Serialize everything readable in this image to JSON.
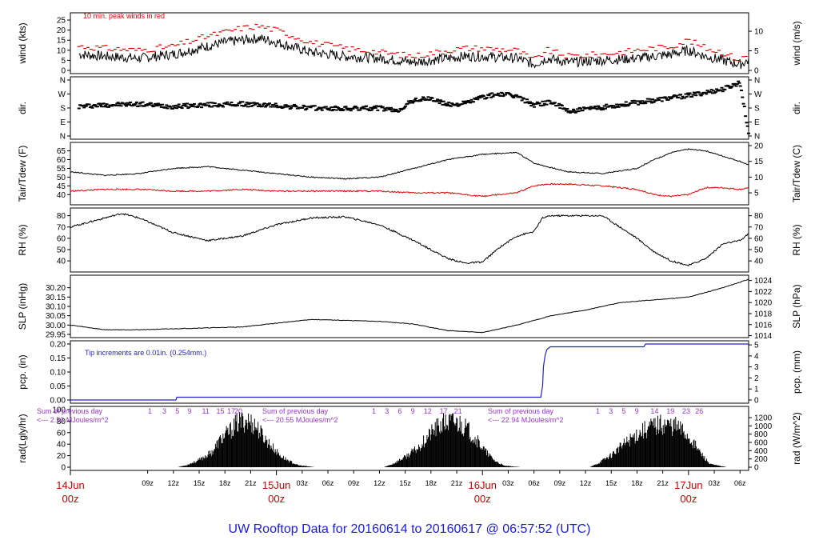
{
  "title": "UW Rooftop Data for 20160614  to  20160617 @ 06:57:52  (UTC)",
  "colors": {
    "black": "#000000",
    "red": "#dd0000",
    "blue": "#2222cc",
    "purple": "#9933cc",
    "title": "#1a1aee",
    "day": "#cc0000"
  },
  "time_axis": {
    "start_hour": 0,
    "end_hour": 79,
    "labels": [
      {
        "h": 9,
        "t": "09z"
      },
      {
        "h": 12,
        "t": "12z"
      },
      {
        "h": 15,
        "t": "15z"
      },
      {
        "h": 18,
        "t": "18z"
      },
      {
        "h": 21,
        "t": "21z"
      },
      {
        "h": 27,
        "t": "03z"
      },
      {
        "h": 30,
        "t": "06z"
      },
      {
        "h": 33,
        "t": "09z"
      },
      {
        "h": 36,
        "t": "12z"
      },
      {
        "h": 39,
        "t": "15z"
      },
      {
        "h": 42,
        "t": "18z"
      },
      {
        "h": 45,
        "t": "21z"
      },
      {
        "h": 51,
        "t": "03z"
      },
      {
        "h": 54,
        "t": "06z"
      },
      {
        "h": 57,
        "t": "09z"
      },
      {
        "h": 60,
        "t": "12z"
      },
      {
        "h": 63,
        "t": "15z"
      },
      {
        "h": 66,
        "t": "18z"
      },
      {
        "h": 69,
        "t": "21z"
      },
      {
        "h": 75,
        "t": "03z"
      },
      {
        "h": 78,
        "t": "06z"
      }
    ],
    "days": [
      {
        "h": 0,
        "date": "14Jun",
        "z": "00z"
      },
      {
        "h": 24,
        "date": "15Jun",
        "z": "00z"
      },
      {
        "h": 48,
        "date": "16Jun",
        "z": "00z"
      },
      {
        "h": 72,
        "date": "17Jun",
        "z": "00z"
      }
    ]
  },
  "chart_data": [
    {
      "type": "line",
      "panel": "wind",
      "ylabel": "wind (kts)",
      "ylabel_right": "wind (m/s)",
      "ylim": [
        0,
        27
      ],
      "yticks": [
        "0",
        "5",
        "10",
        "15",
        "20",
        "25"
      ],
      "yticks_right": [
        "0",
        "5",
        "10"
      ],
      "annotation": "10 min. peak winds in red",
      "x": [
        1,
        4,
        8,
        12,
        16,
        18,
        20,
        22,
        24,
        28,
        32,
        36,
        40,
        44,
        46,
        48,
        52,
        54,
        55.5,
        58,
        62,
        66,
        70,
        72,
        74,
        76,
        78,
        79
      ],
      "series": [
        {
          "values": [
            8,
            7,
            6,
            8,
            12,
            14,
            15,
            16,
            14,
            9,
            7,
            6,
            4,
            6,
            7,
            7,
            6,
            3,
            6,
            4,
            5,
            6,
            8,
            10,
            7,
            5,
            3,
            5
          ]
        },
        {
          "values": [
            12,
            11,
            10,
            12,
            17,
            19,
            21,
            22,
            20,
            14,
            11,
            9,
            7,
            10,
            11,
            11,
            10,
            5,
            10,
            7,
            8,
            10,
            12,
            15,
            11,
            9,
            5,
            8
          ]
        }
      ]
    },
    {
      "type": "scatter",
      "panel": "dir",
      "ylabel": "dir.",
      "ylabel_right": "dir.",
      "yticks": [
        "N",
        "E",
        "S",
        "W",
        "N"
      ],
      "x": [
        1,
        4,
        8,
        12,
        16,
        20,
        24,
        28,
        32,
        36,
        38,
        40,
        42,
        44,
        46,
        48,
        50,
        52,
        54,
        56,
        58,
        60,
        64,
        68,
        72,
        76,
        78,
        79
      ],
      "values": [
        190,
        200,
        205,
        190,
        200,
        205,
        195,
        180,
        175,
        180,
        160,
        230,
        240,
        200,
        210,
        250,
        270,
        255,
        200,
        220,
        160,
        170,
        200,
        230,
        260,
        300,
        345,
        20
      ]
    },
    {
      "type": "line",
      "panel": "temperature",
      "ylabel": "Tair/Tdew (F)",
      "ylabel_right": "Tair/Tdew (C)",
      "ylim": [
        36,
        68
      ],
      "yticks": [
        "40",
        "45",
        "50",
        "55",
        "60",
        "65"
      ],
      "yticks_right": [
        "5",
        "10",
        "15",
        "20"
      ],
      "x": [
        0,
        4,
        8,
        12,
        16,
        20,
        24,
        28,
        32,
        36,
        40,
        44,
        48,
        52,
        54,
        55.5,
        58,
        62,
        66,
        68,
        70,
        72,
        74,
        76,
        78,
        79
      ],
      "series": [
        {
          "values": [
            53,
            51,
            52,
            55,
            56,
            54,
            52,
            50,
            49,
            50,
            55,
            60,
            63,
            64,
            58,
            56,
            53,
            52,
            55,
            60,
            64,
            66,
            65,
            62,
            59,
            57
          ]
        },
        {
          "values": [
            42,
            43,
            43,
            42,
            42,
            43,
            42,
            42,
            42,
            42,
            41,
            41,
            39,
            41,
            45,
            46,
            46,
            45,
            43,
            40,
            39,
            40,
            44,
            44,
            43,
            44
          ]
        }
      ]
    },
    {
      "type": "line",
      "panel": "rh",
      "ylabel": "RH (%)",
      "ylabel_right": "RH (%)",
      "ylim": [
        33,
        84
      ],
      "yticks": [
        "40",
        "50",
        "60",
        "70",
        "80"
      ],
      "yticks_right": [
        "40",
        "50",
        "60",
        "70",
        "80"
      ],
      "x": [
        0,
        4,
        6,
        8,
        12,
        16,
        20,
        24,
        28,
        32,
        36,
        40,
        42,
        44,
        46,
        48,
        50,
        52,
        54,
        55,
        56,
        58,
        60,
        62,
        64,
        66,
        68,
        70,
        72,
        74,
        76,
        78,
        79
      ],
      "values": [
        70,
        78,
        82,
        78,
        65,
        58,
        62,
        72,
        78,
        79,
        72,
        58,
        50,
        42,
        38,
        39,
        52,
        62,
        66,
        78,
        80,
        80,
        80,
        80,
        70,
        60,
        48,
        40,
        36,
        42,
        55,
        58,
        64
      ]
    },
    {
      "type": "line",
      "panel": "slp",
      "ylabel": "SLP (inHg)",
      "ylabel_right": "SLP (hPa)",
      "ylim": [
        29.95,
        30.25
      ],
      "yticks": [
        "29.95",
        "30.00",
        "30.05",
        "30.10",
        "30.15",
        "30.20"
      ],
      "yticks_right": [
        "1014",
        "1016",
        "1018",
        "1020",
        "1022",
        "1024"
      ],
      "x": [
        0,
        4,
        8,
        12,
        16,
        20,
        24,
        28,
        32,
        36,
        40,
        44,
        48,
        52,
        56,
        60,
        64,
        68,
        72,
        76,
        79
      ],
      "values": [
        30.0,
        29.975,
        29.975,
        29.98,
        29.985,
        29.99,
        30.01,
        30.03,
        30.025,
        30.02,
        30.005,
        29.97,
        29.96,
        30.0,
        30.05,
        30.08,
        30.12,
        30.135,
        30.15,
        30.2,
        30.245
      ]
    },
    {
      "type": "line",
      "panel": "pcp",
      "ylabel": "pcp. (in)",
      "ylabel_right": "pcp. (mm)",
      "ylim": [
        0,
        0.2
      ],
      "yticks": [
        "0.00",
        "0.05",
        "0.10",
        "0.15",
        "0.20"
      ],
      "yticks_right": [
        "0",
        "1",
        "2",
        "3",
        "4",
        "5"
      ],
      "annotation": "Tip increments are 0.01in. (0.254mm.)",
      "x": [
        0,
        12.3,
        12.4,
        54.8,
        55.0,
        55.1,
        55.3,
        55.5,
        55.9,
        66.8,
        67.0,
        79
      ],
      "values": [
        0.0,
        0.0,
        0.01,
        0.01,
        0.05,
        0.12,
        0.16,
        0.18,
        0.19,
        0.19,
        0.2,
        0.2
      ]
    },
    {
      "type": "area",
      "panel": "rad",
      "ylabel": "rad(Lgly/hr)",
      "ylabel_right": "rad (W/m^2)",
      "ylim": [
        0,
        100
      ],
      "yticks": [
        "0",
        "20",
        "40",
        "60",
        "80",
        "100"
      ],
      "yticks_right": [
        "0",
        "200",
        "400",
        "600",
        "800",
        "1000",
        "1200"
      ],
      "annotations": [
        {
          "line1": "Sum of previous day",
          "line2": "<--- 2.53 MJoules/m^2"
        },
        {
          "line1": "Sum of previous day",
          "line2": "<--- 20.55 MJoules/m^2"
        },
        {
          "line1": "Sum of previous day",
          "line2": "<--- 22.94 MJoules/m^2"
        }
      ],
      "hour_marks": [
        "1",
        "3",
        "5",
        "9",
        "11",
        "15",
        "17",
        "20",
        "1",
        "3",
        "6",
        "9",
        "12",
        "17",
        "21",
        "1",
        "3",
        "5",
        "9",
        "14",
        "19",
        "23",
        "26"
      ],
      "x": [
        12.5,
        13.5,
        15,
        16.5,
        17.5,
        18.5,
        19.5,
        20.5,
        21.5,
        22.5,
        23.5,
        24.5,
        25.5,
        26.5,
        28.5,
        36.5,
        37.5,
        39,
        40.5,
        41.5,
        42.5,
        43.5,
        44.5,
        45.5,
        46.5,
        47.5,
        48.5,
        49.5,
        50.5,
        52.5,
        60.5,
        61.5,
        63,
        64.5,
        66,
        67.5,
        69,
        70.5,
        71.5,
        72.5,
        73.5,
        74.5,
        76.5
      ],
      "values": [
        0,
        4,
        14,
        30,
        55,
        70,
        88,
        93,
        84,
        60,
        40,
        22,
        12,
        4,
        0,
        0,
        6,
        20,
        38,
        58,
        76,
        86,
        90,
        86,
        70,
        50,
        28,
        12,
        3,
        0,
        0,
        8,
        24,
        46,
        66,
        80,
        86,
        82,
        70,
        50,
        26,
        6,
        0
      ]
    }
  ]
}
